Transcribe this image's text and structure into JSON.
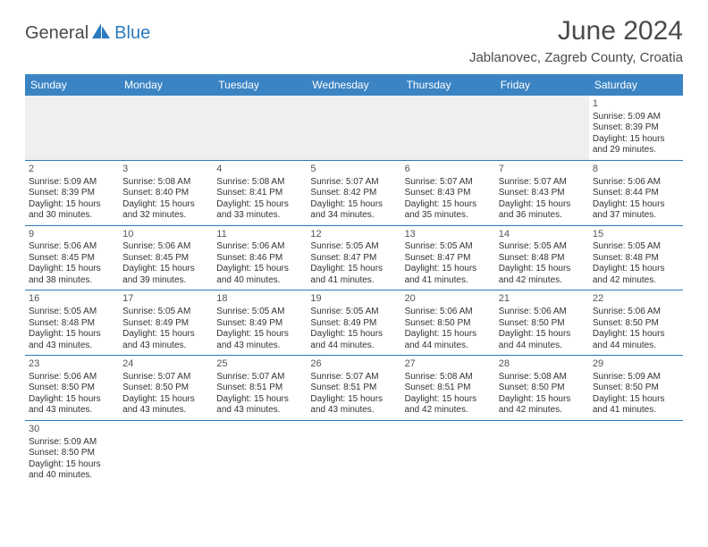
{
  "header": {
    "logo_general": "General",
    "logo_blue": "Blue",
    "title": "June 2024",
    "location": "Jablanovec, Zagreb County, Croatia"
  },
  "styling": {
    "header_bg": "#3b84c4",
    "header_text": "#ffffff",
    "border_color": "#2b7bbd",
    "blank_bg": "#efefef",
    "body_bg": "#ffffff",
    "text_color": "#333333",
    "title_color": "#4a4a4a",
    "title_fontsize": 30,
    "location_fontsize": 15,
    "dayheader_fontsize": 12,
    "cell_fontsize": 10
  },
  "calendar": {
    "type": "table",
    "day_headers": [
      "Sunday",
      "Monday",
      "Tuesday",
      "Wednesday",
      "Thursday",
      "Friday",
      "Saturday"
    ],
    "weeks": [
      [
        null,
        null,
        null,
        null,
        null,
        null,
        {
          "n": "1",
          "sunrise": "Sunrise: 5:09 AM",
          "sunset": "Sunset: 8:39 PM",
          "dl1": "Daylight: 15 hours",
          "dl2": "and 29 minutes."
        }
      ],
      [
        {
          "n": "2",
          "sunrise": "Sunrise: 5:09 AM",
          "sunset": "Sunset: 8:39 PM",
          "dl1": "Daylight: 15 hours",
          "dl2": "and 30 minutes."
        },
        {
          "n": "3",
          "sunrise": "Sunrise: 5:08 AM",
          "sunset": "Sunset: 8:40 PM",
          "dl1": "Daylight: 15 hours",
          "dl2": "and 32 minutes."
        },
        {
          "n": "4",
          "sunrise": "Sunrise: 5:08 AM",
          "sunset": "Sunset: 8:41 PM",
          "dl1": "Daylight: 15 hours",
          "dl2": "and 33 minutes."
        },
        {
          "n": "5",
          "sunrise": "Sunrise: 5:07 AM",
          "sunset": "Sunset: 8:42 PM",
          "dl1": "Daylight: 15 hours",
          "dl2": "and 34 minutes."
        },
        {
          "n": "6",
          "sunrise": "Sunrise: 5:07 AM",
          "sunset": "Sunset: 8:43 PM",
          "dl1": "Daylight: 15 hours",
          "dl2": "and 35 minutes."
        },
        {
          "n": "7",
          "sunrise": "Sunrise: 5:07 AM",
          "sunset": "Sunset: 8:43 PM",
          "dl1": "Daylight: 15 hours",
          "dl2": "and 36 minutes."
        },
        {
          "n": "8",
          "sunrise": "Sunrise: 5:06 AM",
          "sunset": "Sunset: 8:44 PM",
          "dl1": "Daylight: 15 hours",
          "dl2": "and 37 minutes."
        }
      ],
      [
        {
          "n": "9",
          "sunrise": "Sunrise: 5:06 AM",
          "sunset": "Sunset: 8:45 PM",
          "dl1": "Daylight: 15 hours",
          "dl2": "and 38 minutes."
        },
        {
          "n": "10",
          "sunrise": "Sunrise: 5:06 AM",
          "sunset": "Sunset: 8:45 PM",
          "dl1": "Daylight: 15 hours",
          "dl2": "and 39 minutes."
        },
        {
          "n": "11",
          "sunrise": "Sunrise: 5:06 AM",
          "sunset": "Sunset: 8:46 PM",
          "dl1": "Daylight: 15 hours",
          "dl2": "and 40 minutes."
        },
        {
          "n": "12",
          "sunrise": "Sunrise: 5:05 AM",
          "sunset": "Sunset: 8:47 PM",
          "dl1": "Daylight: 15 hours",
          "dl2": "and 41 minutes."
        },
        {
          "n": "13",
          "sunrise": "Sunrise: 5:05 AM",
          "sunset": "Sunset: 8:47 PM",
          "dl1": "Daylight: 15 hours",
          "dl2": "and 41 minutes."
        },
        {
          "n": "14",
          "sunrise": "Sunrise: 5:05 AM",
          "sunset": "Sunset: 8:48 PM",
          "dl1": "Daylight: 15 hours",
          "dl2": "and 42 minutes."
        },
        {
          "n": "15",
          "sunrise": "Sunrise: 5:05 AM",
          "sunset": "Sunset: 8:48 PM",
          "dl1": "Daylight: 15 hours",
          "dl2": "and 42 minutes."
        }
      ],
      [
        {
          "n": "16",
          "sunrise": "Sunrise: 5:05 AM",
          "sunset": "Sunset: 8:48 PM",
          "dl1": "Daylight: 15 hours",
          "dl2": "and 43 minutes."
        },
        {
          "n": "17",
          "sunrise": "Sunrise: 5:05 AM",
          "sunset": "Sunset: 8:49 PM",
          "dl1": "Daylight: 15 hours",
          "dl2": "and 43 minutes."
        },
        {
          "n": "18",
          "sunrise": "Sunrise: 5:05 AM",
          "sunset": "Sunset: 8:49 PM",
          "dl1": "Daylight: 15 hours",
          "dl2": "and 43 minutes."
        },
        {
          "n": "19",
          "sunrise": "Sunrise: 5:05 AM",
          "sunset": "Sunset: 8:49 PM",
          "dl1": "Daylight: 15 hours",
          "dl2": "and 44 minutes."
        },
        {
          "n": "20",
          "sunrise": "Sunrise: 5:06 AM",
          "sunset": "Sunset: 8:50 PM",
          "dl1": "Daylight: 15 hours",
          "dl2": "and 44 minutes."
        },
        {
          "n": "21",
          "sunrise": "Sunrise: 5:06 AM",
          "sunset": "Sunset: 8:50 PM",
          "dl1": "Daylight: 15 hours",
          "dl2": "and 44 minutes."
        },
        {
          "n": "22",
          "sunrise": "Sunrise: 5:06 AM",
          "sunset": "Sunset: 8:50 PM",
          "dl1": "Daylight: 15 hours",
          "dl2": "and 44 minutes."
        }
      ],
      [
        {
          "n": "23",
          "sunrise": "Sunrise: 5:06 AM",
          "sunset": "Sunset: 8:50 PM",
          "dl1": "Daylight: 15 hours",
          "dl2": "and 43 minutes."
        },
        {
          "n": "24",
          "sunrise": "Sunrise: 5:07 AM",
          "sunset": "Sunset: 8:50 PM",
          "dl1": "Daylight: 15 hours",
          "dl2": "and 43 minutes."
        },
        {
          "n": "25",
          "sunrise": "Sunrise: 5:07 AM",
          "sunset": "Sunset: 8:51 PM",
          "dl1": "Daylight: 15 hours",
          "dl2": "and 43 minutes."
        },
        {
          "n": "26",
          "sunrise": "Sunrise: 5:07 AM",
          "sunset": "Sunset: 8:51 PM",
          "dl1": "Daylight: 15 hours",
          "dl2": "and 43 minutes."
        },
        {
          "n": "27",
          "sunrise": "Sunrise: 5:08 AM",
          "sunset": "Sunset: 8:51 PM",
          "dl1": "Daylight: 15 hours",
          "dl2": "and 42 minutes."
        },
        {
          "n": "28",
          "sunrise": "Sunrise: 5:08 AM",
          "sunset": "Sunset: 8:50 PM",
          "dl1": "Daylight: 15 hours",
          "dl2": "and 42 minutes."
        },
        {
          "n": "29",
          "sunrise": "Sunrise: 5:09 AM",
          "sunset": "Sunset: 8:50 PM",
          "dl1": "Daylight: 15 hours",
          "dl2": "and 41 minutes."
        }
      ],
      [
        {
          "n": "30",
          "sunrise": "Sunrise: 5:09 AM",
          "sunset": "Sunset: 8:50 PM",
          "dl1": "Daylight: 15 hours",
          "dl2": "and 40 minutes."
        },
        null,
        null,
        null,
        null,
        null,
        null
      ]
    ]
  }
}
